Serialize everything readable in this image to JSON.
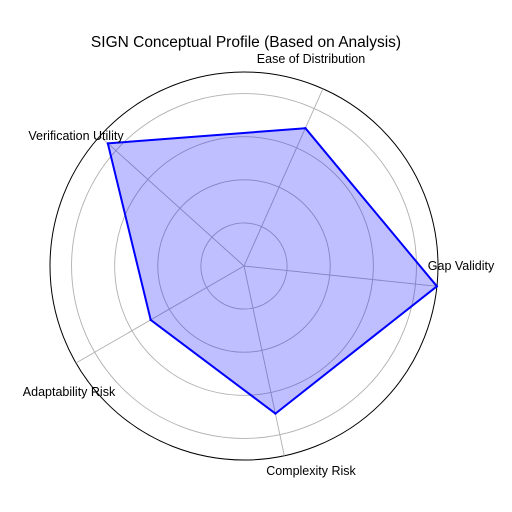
{
  "chart_data": {
    "type": "radar",
    "title": "SIGN Conceptual Profile (Based on Analysis)",
    "categories": [
      "Gap Validity",
      "Ease of Distribution",
      "Verification Utility",
      "Adaptability Risk",
      "Complexity Risk"
    ],
    "values": [
      9.0,
      7.0,
      8.5,
      5.0,
      7.0
    ],
    "rlim": [
      0,
      9
    ],
    "rgrid": [
      2,
      4,
      6,
      8
    ],
    "grid": true,
    "colors": {
      "line": "#0000ff",
      "fill": "#0000ff",
      "grid": "#b0b0b0",
      "frame": "#000000"
    }
  }
}
